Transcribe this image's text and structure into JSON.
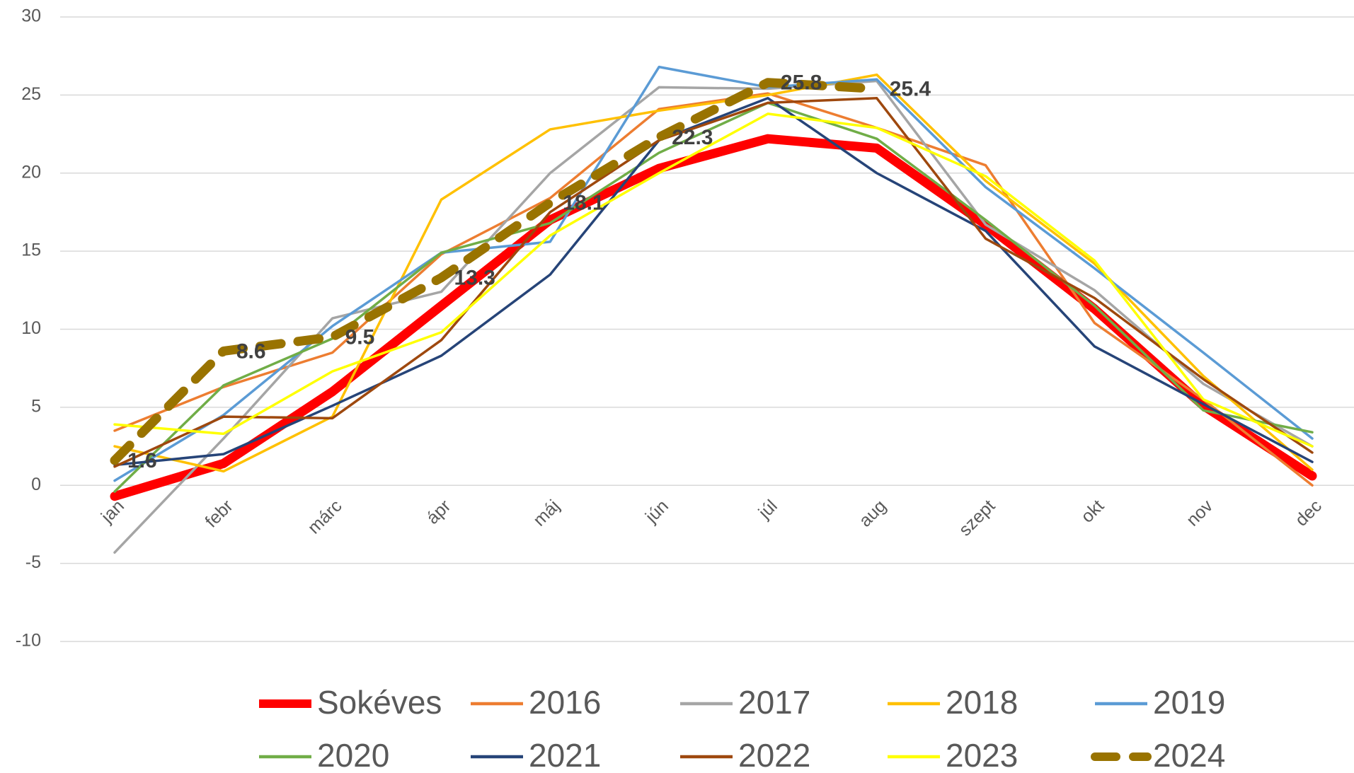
{
  "chart_data": {
    "type": "line",
    "categories": [
      "jan",
      "febr",
      "márc",
      "ápr",
      "máj",
      "jún",
      "júl",
      "aug",
      "szept",
      "okt",
      "nov",
      "dec"
    ],
    "ylim": [
      -10,
      30
    ],
    "yticks": [
      -10,
      -5,
      0,
      5,
      10,
      15,
      20,
      25,
      30
    ],
    "grid": true,
    "legend": "bottom",
    "series": [
      {
        "name": "Sokéves",
        "color": "#ff0000",
        "style": "thick",
        "values": [
          -0.7,
          1.4,
          6,
          11.5,
          17,
          20.3,
          22.2,
          21.6,
          16.7,
          11.3,
          5.1,
          0.6
        ]
      },
      {
        "name": "2016",
        "color": "#ed7d31",
        "values": [
          3.5,
          6.3,
          8.5,
          14.8,
          18.4,
          24.1,
          25.1,
          22.9,
          20.5,
          10.4,
          5.5,
          0
        ]
      },
      {
        "name": "2017",
        "color": "#a5a5a5",
        "values": [
          -4.3,
          3,
          10.7,
          12.4,
          20,
          25.5,
          25.4,
          25.9,
          16.7,
          12.5,
          6.5,
          2.5
        ]
      },
      {
        "name": "2018",
        "color": "#ffc000",
        "values": [
          2.5,
          0.9,
          4.4,
          18.3,
          22.8,
          24,
          25,
          26.3,
          19.5,
          14.2,
          7,
          1
        ]
      },
      {
        "name": "2019",
        "color": "#5b9bd5",
        "values": [
          0.3,
          4.5,
          10.2,
          14.9,
          15.6,
          26.8,
          25.5,
          26,
          19.1,
          13.9,
          8.5,
          3
        ]
      },
      {
        "name": "2020",
        "color": "#70ad47",
        "values": [
          -0.4,
          6.4,
          9.4,
          14.9,
          16.8,
          21.3,
          24.5,
          22.2,
          17,
          11.5,
          4.8,
          3.4
        ]
      },
      {
        "name": "2021",
        "color": "#264478",
        "values": [
          1.3,
          2,
          5.1,
          8.3,
          13.5,
          22.1,
          24.8,
          20,
          16.3,
          8.9,
          5.2,
          1.5
        ]
      },
      {
        "name": "2022",
        "color": "#9e480e",
        "values": [
          1.2,
          4.4,
          4.3,
          9.3,
          17.5,
          22.1,
          24.5,
          24.8,
          15.8,
          12,
          6.8,
          2.1
        ]
      },
      {
        "name": "2023",
        "color": "#ffff00",
        "values": [
          3.9,
          3.3,
          7.3,
          9.8,
          16,
          20,
          23.8,
          22.9,
          19.8,
          14.4,
          5.5,
          2.5
        ]
      },
      {
        "name": "2024",
        "color": "#997300",
        "style": "dashed",
        "labels": true,
        "values": [
          1.6,
          8.6,
          9.5,
          13.3,
          18.1,
          22.3,
          25.8,
          25.4,
          null,
          null,
          null,
          null
        ]
      }
    ]
  }
}
